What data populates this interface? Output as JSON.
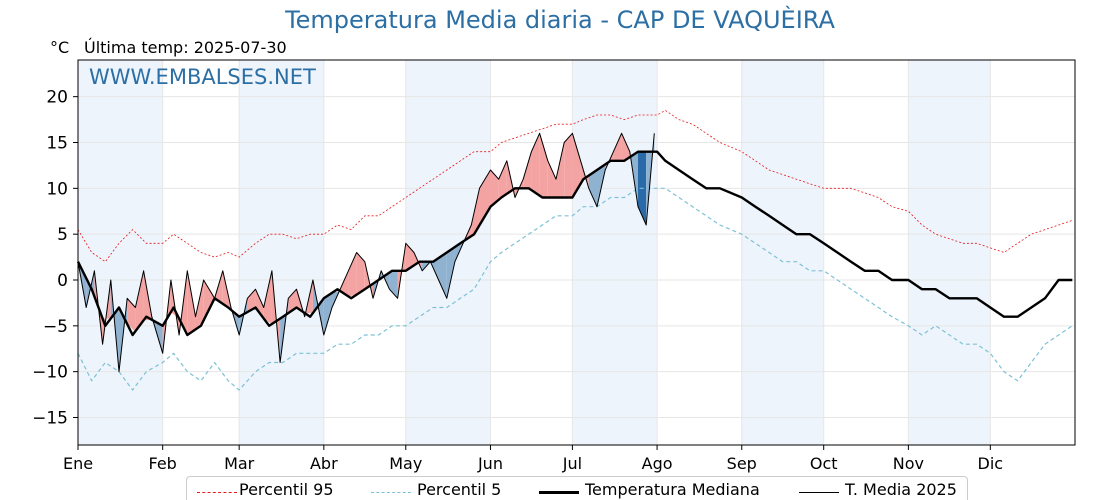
{
  "header": {
    "title": "Temperatura Media diaria - CAP DE VAQUÈIRA",
    "unit": "°C",
    "last_temp": "Última temp: 2025-07-30",
    "watermark": "WWW.EMBALSES.NET"
  },
  "legend": {
    "p95": "Percentil 95",
    "p5": "Percentil 5",
    "median": "Temperatura Mediana",
    "current": "T. Media 2025"
  },
  "colors": {
    "title": "#2c6fa4",
    "p95": "#e31a1c",
    "p5": "#7ec1d6",
    "median": "#000000",
    "current": "#000000",
    "warm_fill": "#f4a3a3",
    "warm_strong": "#e85a5a",
    "cold_fill": "#8fb2d1",
    "cold_strong": "#2a6aa8",
    "month_band": "#eef4fb"
  },
  "chart_data": {
    "type": "line",
    "title": "Temperatura Media diaria - CAP DE VAQUÈIRA",
    "ylabel": "°C",
    "xlabel": "",
    "ylim": [
      -18,
      24
    ],
    "xlim": [
      0,
      365
    ],
    "grid": true,
    "legend_position": "bottom",
    "y_ticks": [
      -15,
      -10,
      -5,
      0,
      5,
      10,
      15,
      20
    ],
    "months": [
      {
        "label": "Ene",
        "start": 0
      },
      {
        "label": "Feb",
        "start": 31
      },
      {
        "label": "Mar",
        "start": 59
      },
      {
        "label": "Abr",
        "start": 90
      },
      {
        "label": "May",
        "start": 120
      },
      {
        "label": "Jun",
        "start": 151
      },
      {
        "label": "Jul",
        "start": 181
      },
      {
        "label": "Ago",
        "start": 212
      },
      {
        "label": "Sep",
        "start": 243
      },
      {
        "label": "Oct",
        "start": 273
      },
      {
        "label": "Nov",
        "start": 304
      },
      {
        "label": "Dic",
        "start": 334
      }
    ],
    "series": [
      {
        "name": "Percentil 95",
        "key": "p95",
        "x": [
          0,
          5,
          10,
          15,
          20,
          25,
          31,
          35,
          40,
          45,
          50,
          55,
          59,
          65,
          70,
          75,
          80,
          85,
          90,
          95,
          100,
          105,
          110,
          115,
          120,
          125,
          130,
          135,
          140,
          145,
          151,
          155,
          160,
          165,
          170,
          175,
          181,
          185,
          190,
          195,
          200,
          205,
          212,
          215,
          220,
          225,
          230,
          235,
          243,
          248,
          253,
          258,
          263,
          268,
          273,
          278,
          283,
          288,
          293,
          298,
          304,
          309,
          314,
          319,
          324,
          329,
          334,
          339,
          344,
          349,
          354,
          359,
          364
        ],
        "values": [
          5.5,
          3,
          2,
          4,
          5.5,
          4,
          4,
          5,
          4,
          3,
          2.5,
          3,
          2.5,
          4,
          5,
          5,
          4.5,
          5,
          5,
          6,
          5.5,
          7,
          7,
          8,
          9,
          10,
          11,
          12,
          13,
          14,
          14,
          15,
          15.5,
          16,
          16.5,
          17,
          17,
          17.5,
          18,
          18,
          17.5,
          18,
          18,
          18.5,
          17.5,
          17,
          16,
          15,
          14,
          13,
          12,
          11.5,
          11,
          10.5,
          10,
          10,
          10,
          9.5,
          9,
          8,
          7.5,
          6,
          5,
          4.5,
          4,
          4,
          3.5,
          3,
          4,
          5,
          5.5,
          6,
          6.5
        ]
      },
      {
        "name": "Percentil 5",
        "key": "p5",
        "x": [
          0,
          5,
          10,
          15,
          20,
          25,
          31,
          35,
          40,
          45,
          50,
          55,
          59,
          65,
          70,
          75,
          80,
          85,
          90,
          95,
          100,
          105,
          110,
          115,
          120,
          125,
          130,
          135,
          140,
          145,
          151,
          155,
          160,
          165,
          170,
          175,
          181,
          185,
          190,
          195,
          200,
          205,
          212,
          215,
          220,
          225,
          230,
          235,
          243,
          248,
          253,
          258,
          263,
          268,
          273,
          278,
          283,
          288,
          293,
          298,
          304,
          309,
          314,
          319,
          324,
          329,
          334,
          339,
          344,
          349,
          354,
          359,
          364
        ],
        "values": [
          -8,
          -11,
          -9,
          -10,
          -12,
          -10,
          -9,
          -8,
          -10,
          -11,
          -9,
          -11,
          -12,
          -10,
          -9,
          -9,
          -8,
          -8,
          -8,
          -7,
          -7,
          -6,
          -6,
          -5,
          -5,
          -4,
          -3,
          -3,
          -2,
          -1,
          2,
          3,
          4,
          5,
          6,
          7,
          7,
          8,
          8,
          9,
          9,
          10,
          10,
          10,
          9,
          8,
          7,
          6,
          5,
          4,
          3,
          2,
          2,
          1,
          1,
          0,
          -1,
          -2,
          -3,
          -4,
          -5,
          -6,
          -5,
          -6,
          -7,
          -7,
          -8,
          -10,
          -11,
          -9,
          -7,
          -6,
          -5
        ]
      },
      {
        "name": "Temperatura Mediana",
        "key": "median",
        "x": [
          0,
          5,
          10,
          15,
          20,
          25,
          31,
          35,
          40,
          45,
          50,
          55,
          59,
          65,
          70,
          75,
          80,
          85,
          90,
          95,
          100,
          105,
          110,
          115,
          120,
          125,
          130,
          135,
          140,
          145,
          151,
          155,
          160,
          165,
          170,
          175,
          181,
          185,
          190,
          195,
          200,
          205,
          212,
          215,
          220,
          225,
          230,
          235,
          243,
          248,
          253,
          258,
          263,
          268,
          273,
          278,
          283,
          288,
          293,
          298,
          304,
          309,
          314,
          319,
          324,
          329,
          334,
          339,
          344,
          349,
          354,
          359,
          364
        ],
        "values": [
          2,
          -1,
          -5,
          -3,
          -6,
          -4,
          -5,
          -3,
          -6,
          -5,
          -2,
          -3,
          -4,
          -3,
          -5,
          -4,
          -3,
          -4,
          -2,
          -1,
          -2,
          -1,
          0,
          1,
          1,
          2,
          2,
          3,
          4,
          5,
          8,
          9,
          10,
          10,
          9,
          9,
          9,
          11,
          12,
          13,
          13,
          14,
          14,
          13,
          12,
          11,
          10,
          10,
          9,
          8,
          7,
          6,
          5,
          5,
          4,
          3,
          2,
          1,
          1,
          0,
          0,
          -1,
          -1,
          -2,
          -2,
          -2,
          -3,
          -4,
          -4,
          -3,
          -2,
          0,
          0
        ]
      },
      {
        "name": "T. Media 2025",
        "key": "current",
        "x": [
          0,
          3,
          6,
          9,
          12,
          15,
          18,
          21,
          24,
          27,
          31,
          34,
          37,
          40,
          43,
          46,
          50,
          53,
          56,
          59,
          62,
          65,
          68,
          71,
          74,
          77,
          80,
          83,
          86,
          90,
          93,
          96,
          99,
          102,
          105,
          108,
          111,
          114,
          117,
          120,
          123,
          126,
          129,
          132,
          135,
          138,
          141,
          144,
          147,
          151,
          154,
          157,
          160,
          163,
          166,
          169,
          172,
          175,
          178,
          181,
          184,
          187,
          190,
          193,
          196,
          199,
          202,
          205,
          208,
          211
        ],
        "values": [
          2,
          -3,
          1,
          -7,
          0,
          -10,
          -2,
          -3,
          1,
          -4,
          -8,
          0,
          -6,
          1,
          -4,
          0,
          -2,
          1,
          -3,
          -6,
          -2,
          -1,
          -3,
          1,
          -9,
          -2,
          -1,
          -4,
          0,
          -6,
          -3,
          -1,
          1,
          3,
          2,
          -2,
          1,
          -1,
          -2,
          4,
          3,
          1,
          2,
          0,
          -2,
          2,
          4,
          6,
          10,
          12,
          11,
          13,
          9,
          11,
          14,
          16,
          13,
          11,
          15,
          16,
          13,
          10,
          8,
          12,
          14,
          16,
          14,
          8,
          6,
          16
        ]
      }
    ]
  }
}
